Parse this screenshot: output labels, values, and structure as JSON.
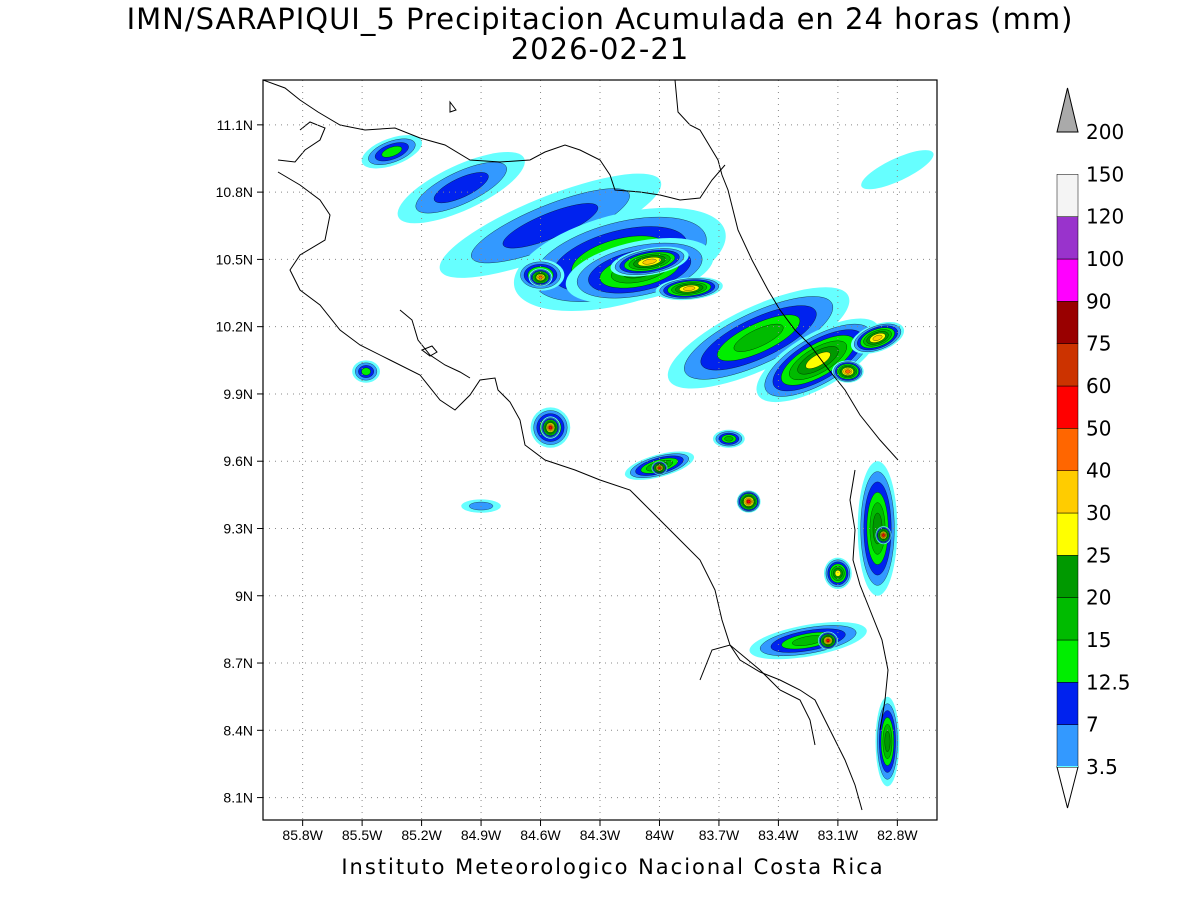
{
  "title_line1": "IMN/SARAPIQUI_5 Precipitacion Acumulada en 24 horas (mm)",
  "title_line2": "2026-02-21",
  "footer": "Instituto Meteorologico Nacional Costa Rica",
  "map": {
    "lon_range": [
      -86.0,
      -82.6
    ],
    "lat_range": [
      8.0,
      11.3
    ],
    "lon_ticks": [
      {
        "value": -85.8,
        "label": "85.8W"
      },
      {
        "value": -85.5,
        "label": "85.5W"
      },
      {
        "value": -85.2,
        "label": "85.2W"
      },
      {
        "value": -84.9,
        "label": "84.9W"
      },
      {
        "value": -84.6,
        "label": "84.6W"
      },
      {
        "value": -84.3,
        "label": "84.3W"
      },
      {
        "value": -84.0,
        "label": "84W"
      },
      {
        "value": -83.7,
        "label": "83.7W"
      },
      {
        "value": -83.4,
        "label": "83.4W"
      },
      {
        "value": -83.1,
        "label": "83.1W"
      },
      {
        "value": -82.8,
        "label": "82.8W"
      }
    ],
    "lat_ticks": [
      {
        "value": 11.1,
        "label": "11.1N"
      },
      {
        "value": 10.8,
        "label": "10.8N"
      },
      {
        "value": 10.5,
        "label": "10.5N"
      },
      {
        "value": 10.2,
        "label": "10.2N"
      },
      {
        "value": 9.9,
        "label": "9.9N"
      },
      {
        "value": 9.6,
        "label": "9.6N"
      },
      {
        "value": 9.3,
        "label": "9.3N"
      },
      {
        "value": 9.0,
        "label": "9N"
      },
      {
        "value": 8.7,
        "label": "8.7N"
      },
      {
        "value": 8.4,
        "label": "8.4N"
      },
      {
        "value": 8.1,
        "label": "8.1N"
      }
    ],
    "grid": "dotted"
  },
  "colorbar": {
    "unit": "mm",
    "levels": [
      "3.5",
      "7",
      "12.5",
      "15",
      "20",
      "25",
      "30",
      "40",
      "50",
      "60",
      "75",
      "90",
      "100",
      "120",
      "150",
      "200"
    ],
    "colors": [
      "#66ffff",
      "#3399ff",
      "#0022ee",
      "#00ee00",
      "#00bb00",
      "#009900",
      "#ffff00",
      "#ffcc00",
      "#ff6600",
      "#ff0000",
      "#cc3300",
      "#990000",
      "#ff00ff",
      "#9933cc",
      "#f4f4f4",
      "#aaaaaa"
    ]
  },
  "rain_cells": [
    {
      "lon": -85.35,
      "lat": 10.98,
      "rx": 0.16,
      "ry": 0.06,
      "level": 3,
      "rot": -20
    },
    {
      "lon": -85.0,
      "lat": 10.82,
      "rx": 0.35,
      "ry": 0.1,
      "level": 2,
      "rot": -25
    },
    {
      "lon": -84.55,
      "lat": 10.65,
      "rx": 0.6,
      "ry": 0.13,
      "level": 2,
      "rot": -22
    },
    {
      "lon": -84.2,
      "lat": 10.5,
      "rx": 0.55,
      "ry": 0.2,
      "level": 4,
      "rot": -15
    },
    {
      "lon": -84.1,
      "lat": 10.45,
      "rx": 0.38,
      "ry": 0.13,
      "level": 5,
      "rot": -12
    },
    {
      "lon": -84.05,
      "lat": 10.49,
      "rx": 0.2,
      "ry": 0.06,
      "level": 7,
      "rot": -10
    },
    {
      "lon": -83.85,
      "lat": 10.37,
      "rx": 0.17,
      "ry": 0.05,
      "level": 7,
      "rot": -5
    },
    {
      "lon": -84.6,
      "lat": 10.43,
      "rx": 0.12,
      "ry": 0.07,
      "level": 5,
      "rot": 0
    },
    {
      "lon": -84.6,
      "lat": 10.42,
      "rx": 0.06,
      "ry": 0.04,
      "level": 8,
      "rot": 0
    },
    {
      "lon": -83.5,
      "lat": 10.15,
      "rx": 0.5,
      "ry": 0.14,
      "level": 4,
      "rot": -25
    },
    {
      "lon": -83.2,
      "lat": 10.05,
      "rx": 0.35,
      "ry": 0.12,
      "level": 6,
      "rot": -30
    },
    {
      "lon": -83.05,
      "lat": 10.0,
      "rx": 0.08,
      "ry": 0.05,
      "level": 8,
      "rot": 0
    },
    {
      "lon": -82.9,
      "lat": 10.15,
      "rx": 0.14,
      "ry": 0.06,
      "level": 7,
      "rot": -20
    },
    {
      "lon": -84.55,
      "lat": 9.75,
      "rx": 0.1,
      "ry": 0.09,
      "level": 5,
      "rot": 0
    },
    {
      "lon": -84.55,
      "lat": 9.75,
      "rx": 0.05,
      "ry": 0.05,
      "level": 9,
      "rot": 0
    },
    {
      "lon": -84.0,
      "lat": 9.58,
      "rx": 0.18,
      "ry": 0.05,
      "level": 5,
      "rot": -15
    },
    {
      "lon": -84.0,
      "lat": 9.57,
      "rx": 0.04,
      "ry": 0.03,
      "level": 9,
      "rot": 0
    },
    {
      "lon": -83.55,
      "lat": 9.42,
      "rx": 0.06,
      "ry": 0.05,
      "level": 9,
      "rot": 0
    },
    {
      "lon": -85.48,
      "lat": 10.0,
      "rx": 0.07,
      "ry": 0.05,
      "level": 3,
      "rot": 0
    },
    {
      "lon": -82.9,
      "lat": 9.3,
      "rx": 0.1,
      "ry": 0.3,
      "level": 5,
      "rot": 0
    },
    {
      "lon": -82.87,
      "lat": 9.27,
      "rx": 0.04,
      "ry": 0.04,
      "level": 9,
      "rot": 0
    },
    {
      "lon": -83.25,
      "lat": 8.8,
      "rx": 0.3,
      "ry": 0.07,
      "level": 4,
      "rot": -10
    },
    {
      "lon": -83.15,
      "lat": 8.8,
      "rx": 0.05,
      "ry": 0.04,
      "level": 9,
      "rot": 0
    },
    {
      "lon": -82.85,
      "lat": 8.35,
      "rx": 0.06,
      "ry": 0.2,
      "level": 5,
      "rot": 0
    },
    {
      "lon": -83.1,
      "lat": 9.1,
      "rx": 0.07,
      "ry": 0.07,
      "level": 6,
      "rot": 0
    },
    {
      "lon": -83.65,
      "lat": 9.7,
      "rx": 0.08,
      "ry": 0.04,
      "level": 4,
      "rot": 0
    },
    {
      "lon": -84.9,
      "lat": 9.4,
      "rx": 0.1,
      "ry": 0.03,
      "level": 1,
      "rot": 0
    },
    {
      "lon": -82.8,
      "lat": 10.9,
      "rx": 0.2,
      "ry": 0.05,
      "level": 0,
      "rot": -25
    }
  ]
}
